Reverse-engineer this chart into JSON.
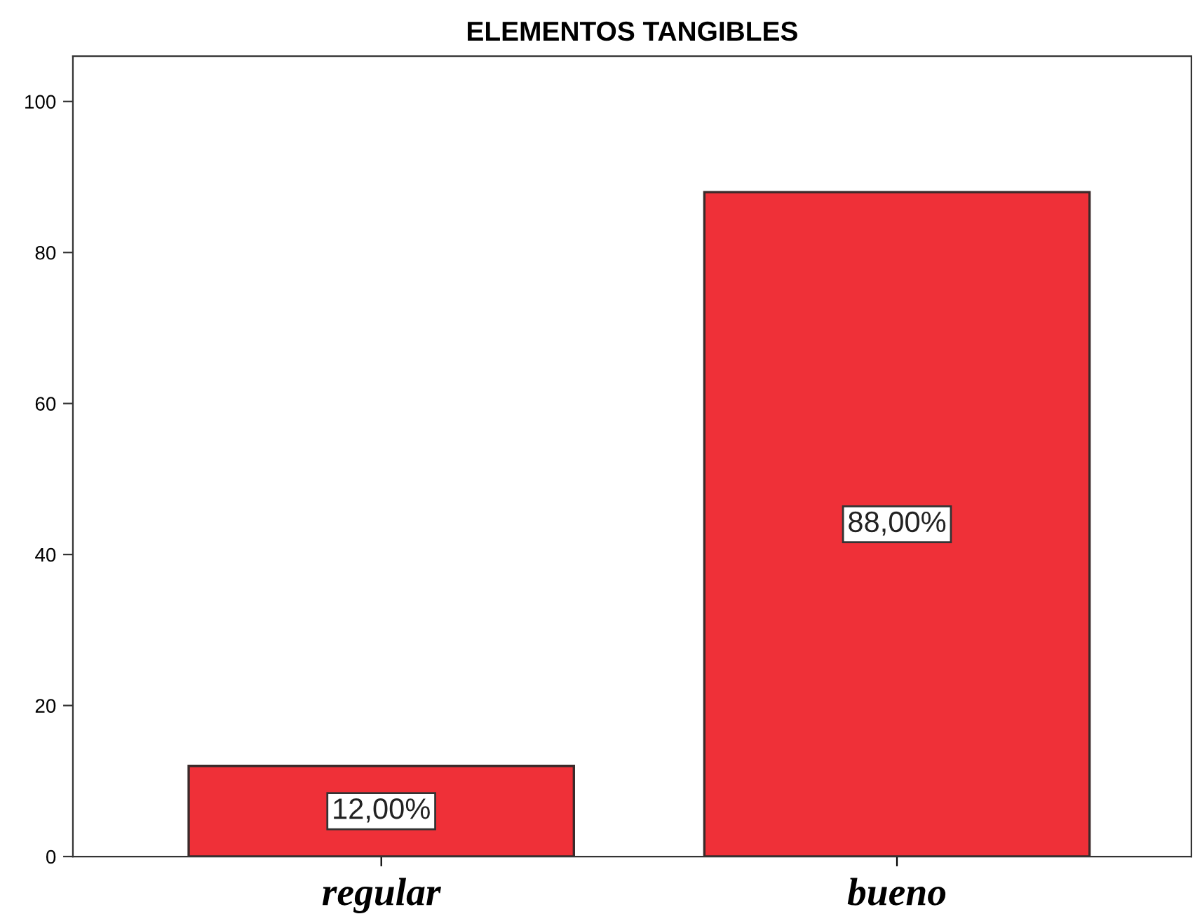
{
  "chart_data": {
    "type": "bar",
    "title": "ELEMENTOS TANGIBLES",
    "categories": [
      "regular",
      "bueno"
    ],
    "values": [
      12,
      88
    ],
    "value_labels": [
      "12,00%",
      "88,00%"
    ],
    "color": "#ef3038",
    "ylim": [
      0,
      106
    ],
    "yticks": [
      0,
      20,
      40,
      60,
      80,
      100
    ],
    "grid": false,
    "legend": false
  }
}
